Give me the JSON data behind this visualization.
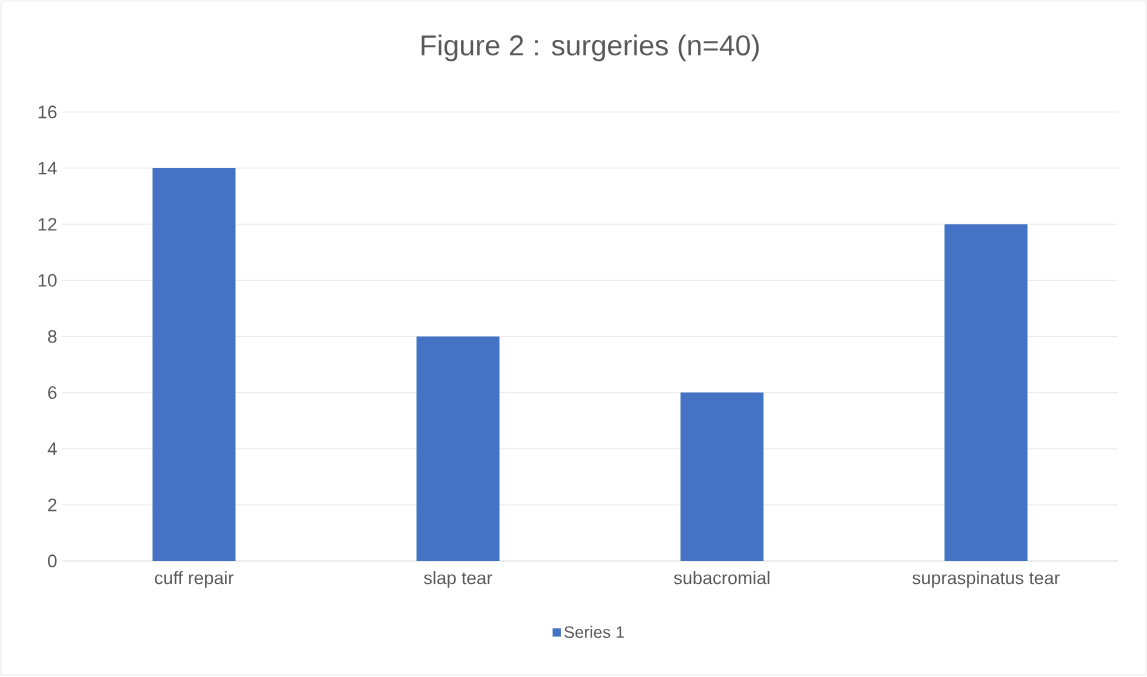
{
  "chart_data": {
    "type": "bar",
    "title": "Figure 2 : surgeries (n=40)",
    "categories": [
      "cuff repair",
      "slap tear",
      "subacromial",
      "supraspinatus tear"
    ],
    "series": [
      {
        "name": "Series 1",
        "color": "#4472c4",
        "values": [
          14,
          8,
          6,
          12
        ]
      }
    ],
    "ylim": [
      0,
      16
    ],
    "yticks": [
      0,
      2,
      4,
      6,
      8,
      10,
      12,
      14,
      16
    ],
    "grid": "y",
    "legend": "bottom"
  }
}
